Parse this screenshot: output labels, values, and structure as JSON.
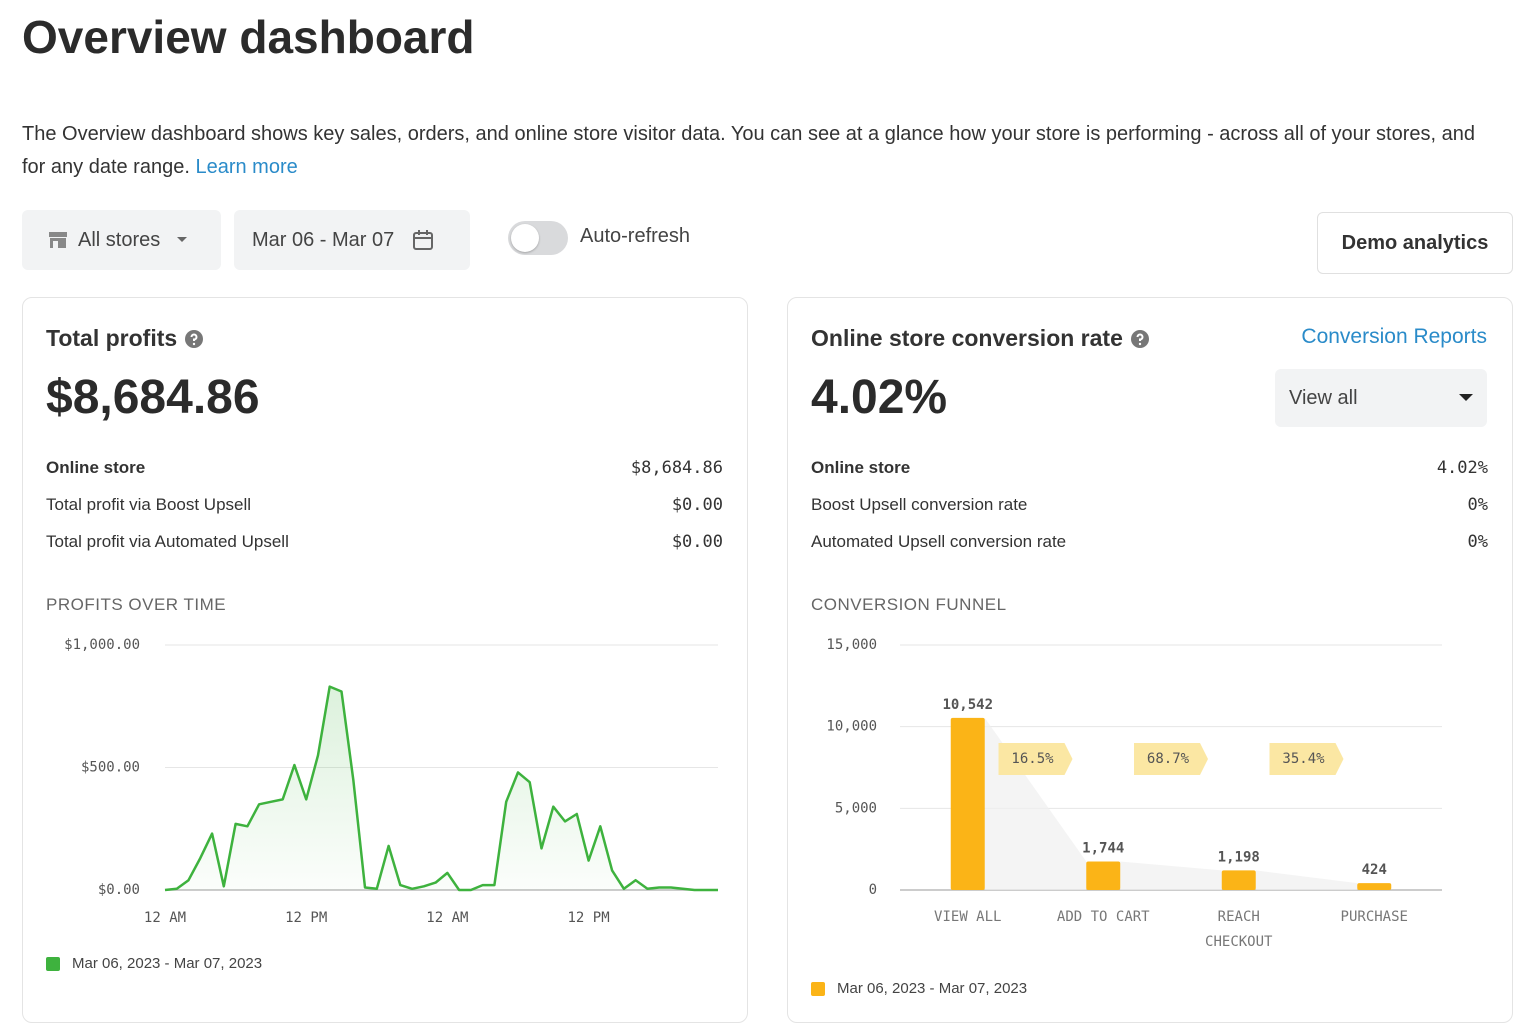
{
  "title": "Overview dashboard",
  "description": "The Overview dashboard shows key sales, orders, and online store visitor data. You can see at a glance how your store is performing - across all of your stores, and for any date range.",
  "learn_more": "Learn more",
  "controls": {
    "store": "All stores",
    "date_range": "Mar 06 - Mar 07",
    "auto_refresh": "Auto-refresh",
    "demo": "Demo analytics"
  },
  "cards": [
    {
      "title": "Total profits",
      "value": "$8,684.86",
      "rows": [
        [
          "Online store",
          "$8,684.86"
        ],
        [
          "Total profit via Boost Upsell",
          "$0.00"
        ],
        [
          "Total profit via Automated Upsell",
          "$0.00"
        ]
      ],
      "section": "PROFITS OVER TIME"
    },
    {
      "title": "Online store conversion rate",
      "link": "Conversion Reports",
      "select": "View all",
      "value": "4.02%",
      "rows": [
        [
          "Online store",
          "4.02%"
        ],
        [
          "Boost Upsell conversion rate",
          "0%"
        ],
        [
          "Automated Upsell conversion rate",
          "0%"
        ]
      ],
      "section": "CONVERSION FUNNEL"
    }
  ],
  "chart_data": [
    {
      "type": "line",
      "categories": [
        "12 AM",
        null,
        null,
        null,
        null,
        null,
        null,
        null,
        null,
        null,
        null,
        null,
        "12 PM",
        null,
        null,
        null,
        null,
        null,
        null,
        null,
        null,
        null,
        null,
        null,
        "12 AM",
        null,
        null,
        null,
        null,
        null,
        null,
        null,
        null,
        null,
        null,
        null,
        "12 PM",
        null,
        null,
        null,
        null,
        null,
        null,
        null,
        null,
        null,
        null,
        null
      ],
      "series": [
        {
          "name": "Mar 06, 2023 - Mar 07, 2023",
          "color": "#3eb23e",
          "values": [
            0,
            5,
            40,
            130,
            230,
            15,
            270,
            260,
            350,
            360,
            370,
            510,
            370,
            550,
            830,
            810,
            450,
            10,
            5,
            180,
            20,
            5,
            15,
            30,
            70,
            0,
            0,
            20,
            20,
            360,
            480,
            440,
            170,
            340,
            280,
            310,
            120,
            260,
            80,
            5,
            40,
            5,
            10,
            10,
            5,
            0,
            0,
            0
          ]
        }
      ],
      "ylim": [
        0,
        1000
      ],
      "yticks": [
        {
          "value": 0,
          "label": "$0.00"
        },
        {
          "value": 500,
          "label": "$500.00"
        },
        {
          "value": 1000,
          "label": "$1,000.00"
        }
      ],
      "grid": true,
      "legend": "bottom-left"
    },
    {
      "type": "bar",
      "categories": [
        "VIEW ALL",
        "ADD TO CART",
        "REACH CHECKOUT",
        "PURCHASE"
      ],
      "series": [
        {
          "name": "Mar 06, 2023 - Mar 07, 2023",
          "color": "#fbb417",
          "values": [
            10542,
            1744,
            1198,
            424
          ],
          "value_labels": [
            "10,542",
            "1,744",
            "1,198",
            "424"
          ]
        }
      ],
      "annotations": [
        "16.5%",
        "68.7%",
        "35.4%"
      ],
      "ylim": [
        0,
        15000
      ],
      "yticks": [
        0,
        {
          "value": 5000,
          "label": "5,000"
        },
        {
          "value": 10000,
          "label": "10,000"
        },
        {
          "value": 15000,
          "label": "15,000"
        }
      ],
      "grid": true,
      "legend": "bottom-left"
    }
  ]
}
